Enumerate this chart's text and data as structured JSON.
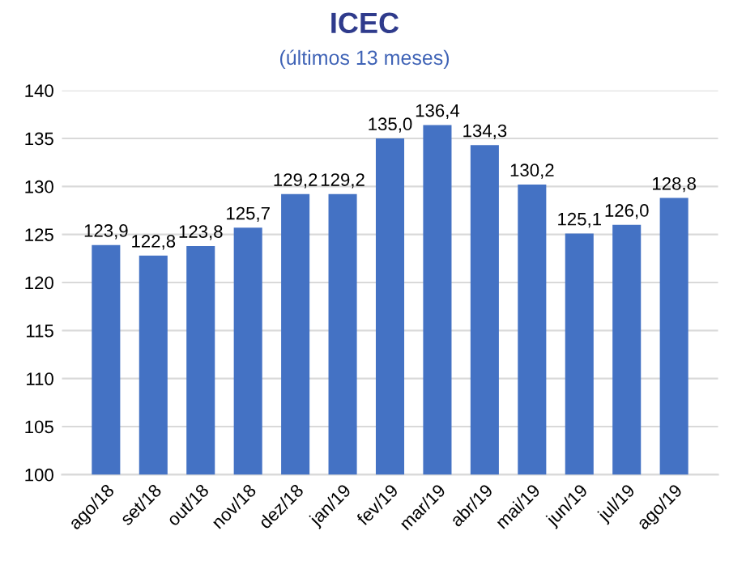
{
  "chart_data": {
    "type": "bar",
    "title": "ICEC",
    "subtitle": "(últimos 13 meses)",
    "categories": [
      "ago/18",
      "set/18",
      "out/18",
      "nov/18",
      "dez/18",
      "jan/19",
      "fev/19",
      "mar/19",
      "abr/19",
      "mai/19",
      "jun/19",
      "jul/19",
      "ago/19"
    ],
    "values": [
      123.9,
      122.8,
      123.8,
      125.7,
      129.2,
      129.2,
      135.0,
      136.4,
      134.3,
      130.2,
      125.1,
      126.0,
      128.8
    ],
    "value_labels": [
      "123,9",
      "122,8",
      "123,8",
      "125,7",
      "129,2",
      "129,2",
      "135,0",
      "136,4",
      "134,3",
      "130,2",
      "125,1",
      "126,0",
      "128,8"
    ],
    "color": "#4472c4",
    "ylim": [
      100,
      140
    ],
    "yticks": [
      100,
      105,
      110,
      115,
      120,
      125,
      130,
      135,
      140
    ],
    "grid": "y"
  }
}
